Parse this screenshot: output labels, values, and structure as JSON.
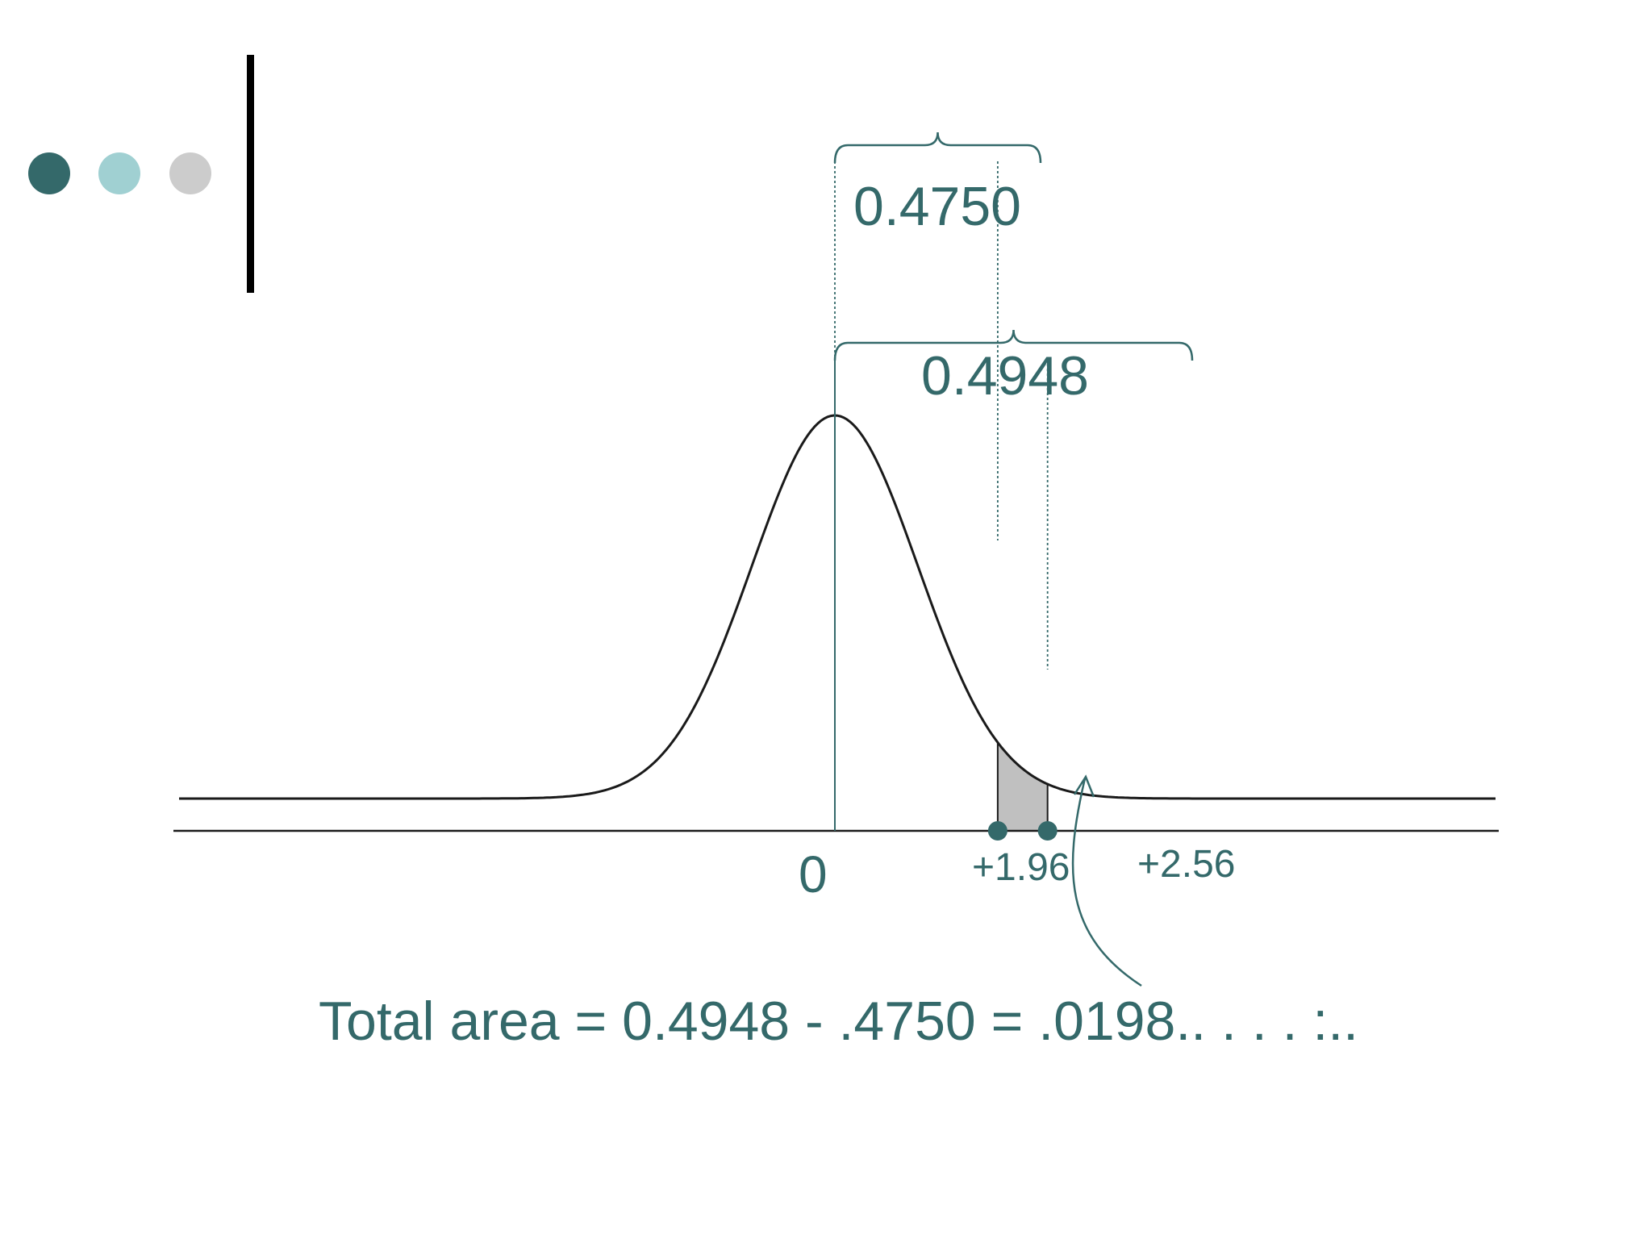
{
  "colors": {
    "accent_dark": "#34696a",
    "accent_light": "#a0d0d2",
    "accent_gray": "#cccccc",
    "shaded_region": "#c0c0c0",
    "curve": "#1a1a1a"
  },
  "decor": {
    "dots": [
      "dark-teal-dot",
      "light-teal-dot",
      "gray-dot"
    ]
  },
  "labels": {
    "area_to_196": "0.4750",
    "area_to_256": "0.4948",
    "center": "0",
    "z1": "+1.96",
    "z2": "+2.56",
    "total": "Total area = 0.4948 - .4750 = .0198.. . . . :.."
  },
  "diagram": {
    "distribution": "standard normal curve",
    "shaded_interval": [
      1.96,
      2.56
    ],
    "braces": [
      "0 to +1.96",
      "0 to +2.56"
    ]
  }
}
